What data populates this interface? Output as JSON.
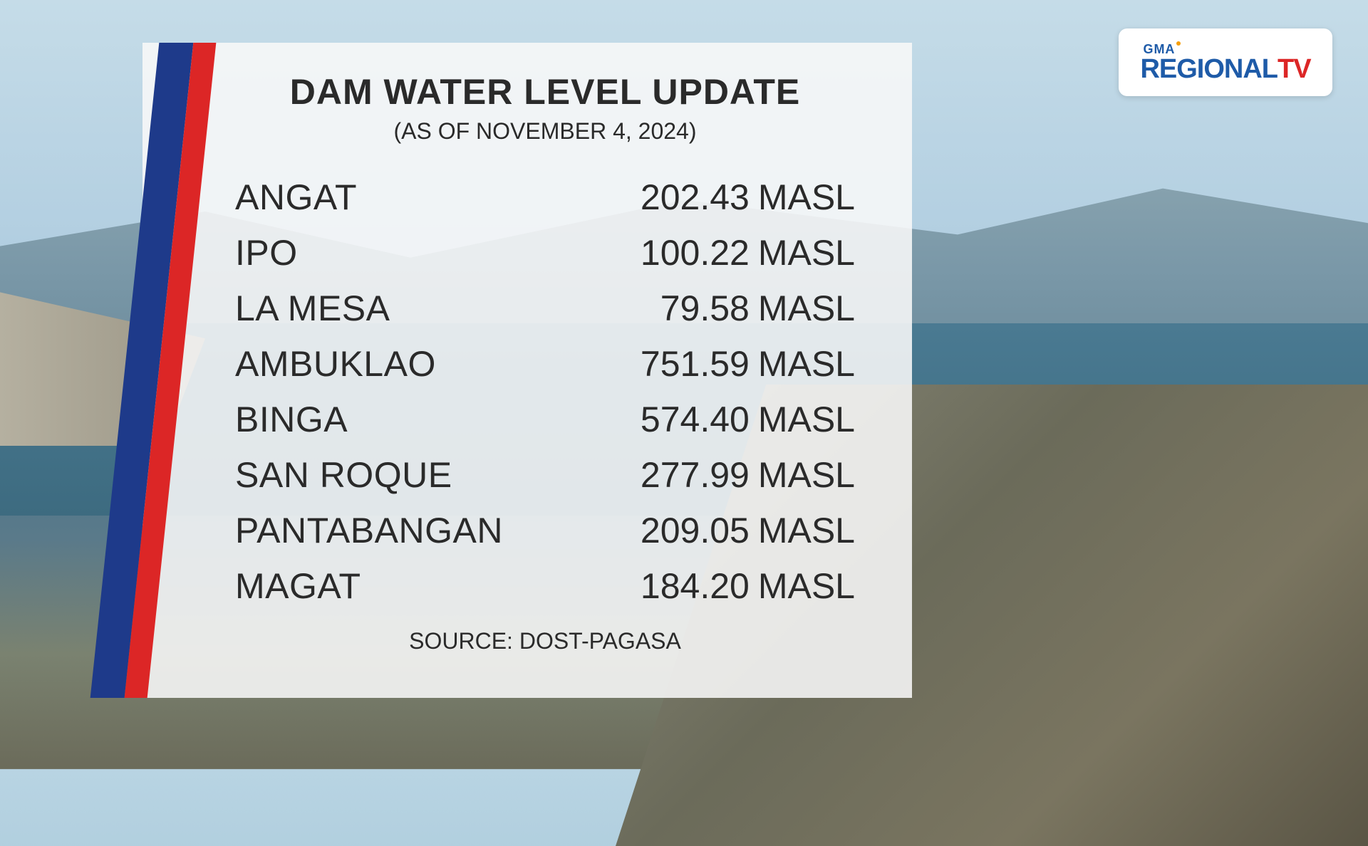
{
  "panel": {
    "title": "DAM WATER LEVEL UPDATE",
    "subtitle": "(AS OF NOVEMBER 4, 2024)",
    "source": "SOURCE: DOST-PAGASA",
    "background_color": "rgba(248, 248, 248, 0.88)",
    "title_fontsize": 50,
    "subtitle_fontsize": 32,
    "text_color": "#2a2a2a",
    "unit": "MASL",
    "rows": [
      {
        "name": "ANGAT",
        "value": "202.43"
      },
      {
        "name": "IPO",
        "value": "100.22"
      },
      {
        "name": "LA MESA",
        "value": "79.58"
      },
      {
        "name": "AMBUKLAO",
        "value": "751.59"
      },
      {
        "name": "BINGA",
        "value": "574.40"
      },
      {
        "name": "SAN ROQUE",
        "value": "277.99"
      },
      {
        "name": "PANTABANGAN",
        "value": "209.05"
      },
      {
        "name": "MAGAT",
        "value": "184.20"
      }
    ],
    "row_fontsize": 50,
    "source_fontsize": 32
  },
  "accent_stripe": {
    "blue": "#1e3a8a",
    "red": "#dc2626"
  },
  "logo": {
    "top_text": "GMA",
    "main_text_1": "REGIONAL",
    "main_text_2": "TV",
    "color_primary": "#1e5ba8",
    "color_accent": "#dc2626",
    "background": "#ffffff"
  },
  "background": {
    "sky_color": "#c5dce8",
    "mountain_color": "#8ba5b0",
    "water_color": "#4a7a92",
    "foreground_color": "#8a8a7a"
  }
}
